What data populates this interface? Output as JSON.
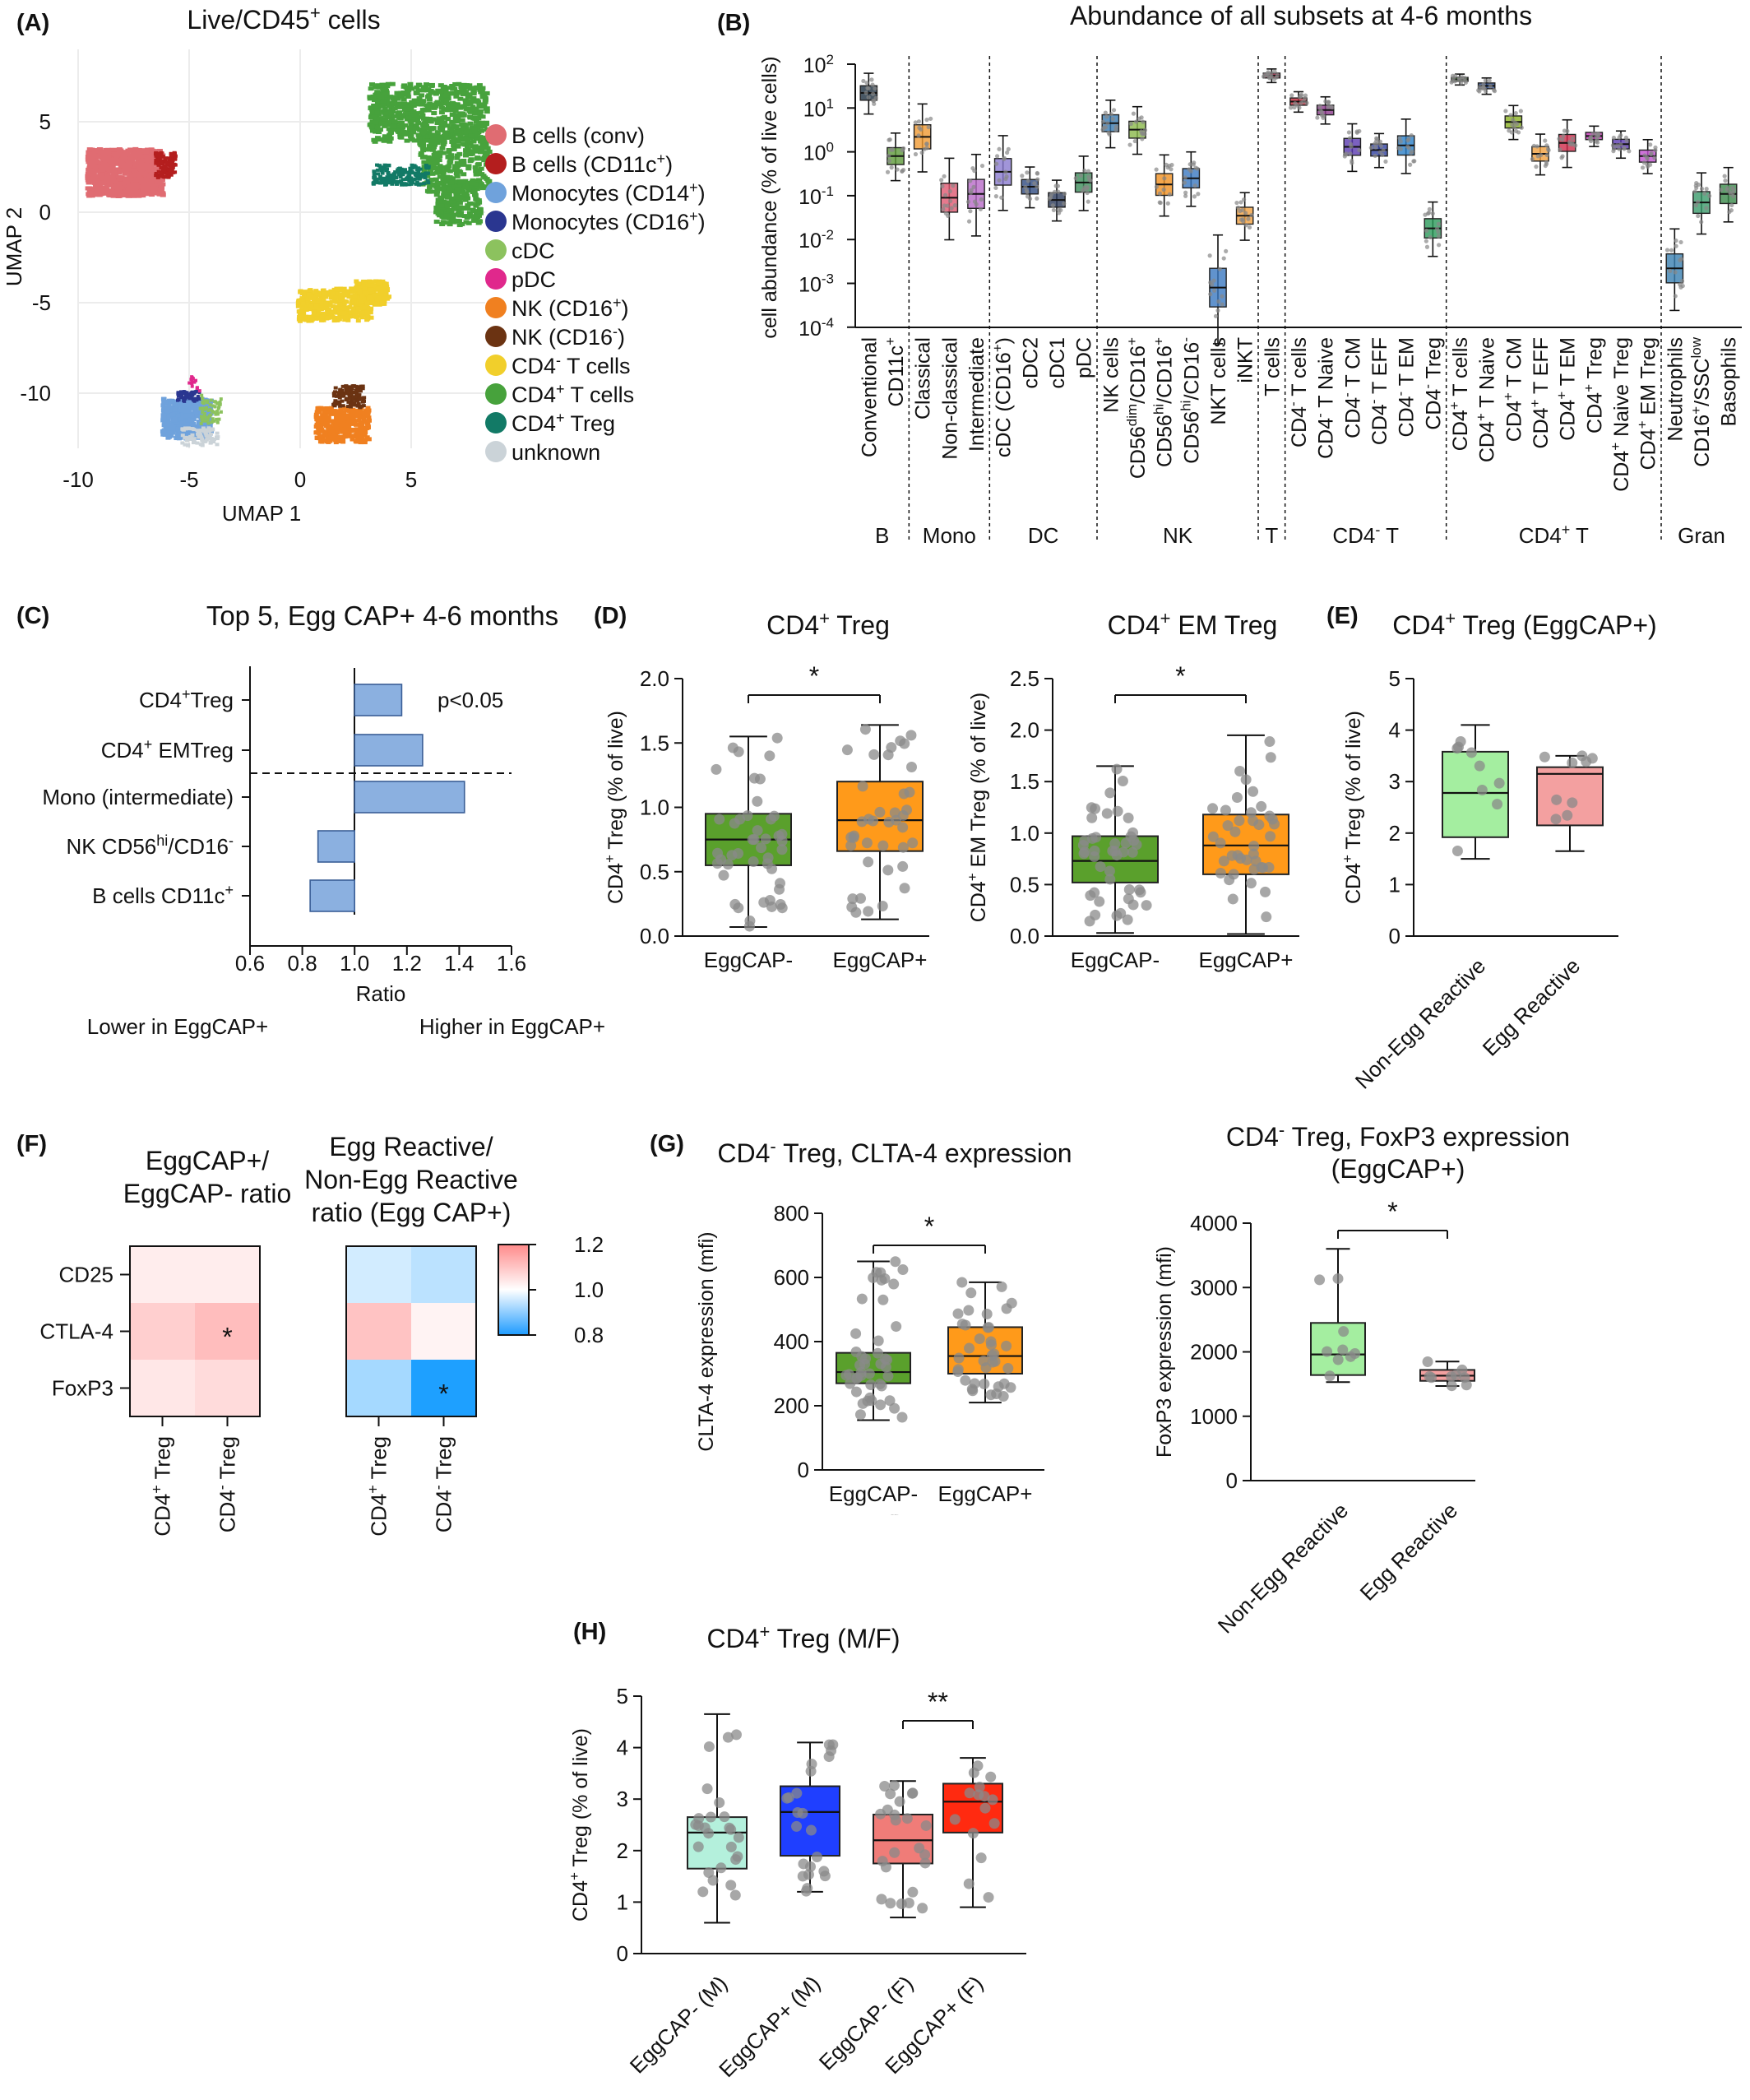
{
  "colors": {
    "b_conv": "#e06c72",
    "b_cd11c": "#b41e1e",
    "mono14": "#6fa2dc",
    "mono16": "#2a3690",
    "cdc": "#8cc25e",
    "pdc": "#e0288c",
    "nk16pos": "#f08020",
    "nk16neg": "#6b3312",
    "cd4neg": "#f1cf2b",
    "cd4pos": "#47a23c",
    "cd4treg": "#127a66",
    "unknown": "#cbd3d8",
    "barfill": "#8bb0e0",
    "green_box": "#5aa02c",
    "orange_box": "#ff9a1a",
    "lightgreen_box": "#a4eea0",
    "pink_box": "#f3a0a0",
    "mint_box": "#b4f0dc",
    "blue_box": "#1f3fff",
    "salmon_box": "#f07c78",
    "red_box": "#ff2a10"
  },
  "panel_labels": [
    "(A)",
    "(B)",
    "(C)",
    "(D)",
    "(E)",
    "(F)",
    "(G)",
    "(H)"
  ],
  "chart_data": [
    {
      "panel": "A",
      "type": "scatter",
      "title": "Live/CD45+ cells",
      "xlabel": "UMAP 1",
      "ylabel": "UMAP 2",
      "xticks": [
        "-10",
        "-5",
        "0",
        "5"
      ],
      "yticks": [
        "5",
        "0",
        "-5",
        "-10"
      ],
      "xlim": [
        -10,
        5
      ],
      "ylim": [
        -13,
        6
      ],
      "legend": [
        "B cells (conv)",
        "B cells (CD11c+)",
        "Monocytes (CD14+)",
        "Monocytes (CD16+)",
        "cDC",
        "pDC",
        "NK (CD16+)",
        "NK (CD16-)",
        "CD4- T cells",
        "CD4+ T cells",
        "CD4+ Treg",
        "unknown"
      ],
      "clusters": [
        {
          "name": "B cells (conv)",
          "color_key": "b_conv",
          "cx": -7.5,
          "cy": 2.3
        },
        {
          "name": "B cells (CD11c+)",
          "color_key": "b_cd11c",
          "cx": -6.2,
          "cy": 2.5
        },
        {
          "name": "Monocytes (CD14+)",
          "color_key": "mono14",
          "cx": -5.3,
          "cy": -11.5
        },
        {
          "name": "Monocytes (CD16+)",
          "color_key": "mono16",
          "cx": -5.1,
          "cy": -10.7
        },
        {
          "name": "cDC",
          "color_key": "cdc",
          "cx": -4.6,
          "cy": -10.8
        },
        {
          "name": "pDC",
          "color_key": "pdc",
          "cx": -4.8,
          "cy": -9.3
        },
        {
          "name": "NK (CD16+)",
          "color_key": "nk16pos",
          "cx": 1.7,
          "cy": -11.8
        },
        {
          "name": "NK (CD16-)",
          "color_key": "nk16neg",
          "cx": 2.0,
          "cy": -10.0
        },
        {
          "name": "CD4- T cells",
          "color_key": "cd4neg",
          "cx": 1.7,
          "cy": -5.0
        },
        {
          "name": "CD4+ T cells",
          "color_key": "cd4pos",
          "cx": 5.0,
          "cy": 5.0
        },
        {
          "name": "CD4+ Treg",
          "color_key": "cd4treg",
          "cx": 4.2,
          "cy": 2.4
        },
        {
          "name": "unknown",
          "color_key": "unknown",
          "cx": -5.6,
          "cy": -12.3
        }
      ]
    },
    {
      "panel": "B",
      "type": "box",
      "title": "Abundance of all subsets at 4-6 months",
      "ylabel": "cell abundance (% of live cells)",
      "yscale": "log",
      "ylim": [
        0.0001,
        100
      ],
      "yticks": [
        "10^2",
        "10^1",
        "10^0",
        "10^-1",
        "10^-2",
        "10^-3",
        "10^-4"
      ],
      "groups": [
        "B",
        "Mono",
        "DC",
        "NK",
        "T",
        "CD4- T",
        "CD4+ T",
        "Gran"
      ],
      "categories": [
        "Conventional",
        "CD11c+",
        "Classical",
        "Non-classical",
        "Intermediate",
        "cDC (CD16+)",
        "cDC2",
        "cDC1",
        "pDC",
        "NK cells",
        "CD56dim/CD16+",
        "CD56hi/CD16+",
        "CD56hi/CD16-",
        "NKT cells",
        "iNKT",
        "T cells",
        "CD4- T cells",
        "CD4- T Naive",
        "CD4- T CM",
        "CD4- T EFF",
        "CD4- T EM",
        "CD4- Treg",
        "CD4+ T cells",
        "CD4+ T Naive",
        "CD4+ T CM",
        "CD4+ T EFF",
        "CD4+ T EM",
        "CD4+ Treg",
        "CD4+ Naive Treg",
        "CD4+ EM Treg",
        "Neutrophils",
        "CD16+/SSClow",
        "Basophils"
      ],
      "medians": [
        22,
        0.8,
        2.2,
        0.09,
        0.11,
        0.35,
        0.16,
        0.08,
        0.2,
        4.5,
        3.2,
        0.18,
        0.25,
        0.0008,
        0.035,
        55,
        14,
        9,
        1.3,
        1.1,
        1.4,
        0.018,
        45,
        32,
        4.8,
        0.9,
        1.6,
        2.3,
        1.5,
        0.8,
        0.0022,
        0.07,
        0.11
      ]
    },
    {
      "panel": "C",
      "type": "bar",
      "title": "Top 5, Egg CAP+ 4-6 months",
      "xlabel": "Ratio",
      "xlim": [
        0.6,
        1.6
      ],
      "xticks": [
        "0.6",
        "0.8",
        "1.0",
        "1.2",
        "1.4",
        "1.6"
      ],
      "categories": [
        "CD4+Treg",
        "CD4+ EMTreg",
        "Mono (intermediate)",
        "NK CD56hi/CD16-",
        "B cells CD11c+"
      ],
      "values": [
        1.18,
        1.26,
        1.42,
        0.86,
        0.83
      ],
      "annotation": "p<0.05",
      "note_left": "Lower in EggCAP+",
      "note_right": "Higher in EggCAP+"
    },
    {
      "panel": "D1",
      "type": "box",
      "title": "CD4+ Treg",
      "ylabel": "CD4+ Treg (% of live)",
      "ylim": [
        0,
        2.0
      ],
      "yticks": [
        "0.0",
        "0.5",
        "1.0",
        "1.5",
        "2.0"
      ],
      "categories": [
        "EggCAP-",
        "EggCAP+"
      ],
      "boxes": [
        {
          "min": 0.07,
          "q1": 0.55,
          "median": 0.75,
          "q3": 0.95,
          "max": 1.55
        },
        {
          "min": 0.13,
          "q1": 0.66,
          "median": 0.9,
          "q3": 1.2,
          "max": 1.64
        }
      ],
      "significance": "*"
    },
    {
      "panel": "D2",
      "type": "box",
      "title": "CD4+ EM Treg",
      "ylabel": "CD4+ EM Treg (% of live)",
      "ylim": [
        0,
        2.5
      ],
      "yticks": [
        "0.0",
        "0.5",
        "1.0",
        "1.5",
        "2.0",
        "2.5"
      ],
      "categories": [
        "EggCAP-",
        "EggCAP+"
      ],
      "boxes": [
        {
          "min": 0.03,
          "q1": 0.52,
          "median": 0.73,
          "q3": 0.97,
          "max": 1.65
        },
        {
          "min": 0.02,
          "q1": 0.6,
          "median": 0.88,
          "q3": 1.18,
          "max": 1.95
        }
      ],
      "significance": "*"
    },
    {
      "panel": "E",
      "type": "box",
      "title": "CD4+ Treg (EggCAP+)",
      "ylabel": "CD4+ Treg (% of live)",
      "ylim": [
        0,
        5
      ],
      "yticks": [
        "0",
        "1",
        "2",
        "3",
        "4",
        "5"
      ],
      "categories": [
        "Non-Egg Reactive",
        "Egg Reactive"
      ],
      "boxes": [
        {
          "min": 1.5,
          "q1": 1.92,
          "median": 2.78,
          "q3": 3.58,
          "max": 4.1
        },
        {
          "min": 1.65,
          "q1": 2.15,
          "median": 3.15,
          "q3": 3.28,
          "max": 3.5
        }
      ]
    },
    {
      "panel": "F1",
      "type": "heatmap",
      "title": "EggCAP+/ EggCAP- ratio",
      "rows": [
        "CD25",
        "CTLA-4",
        "FoxP3"
      ],
      "cols": [
        "CD4+ Treg",
        "CD4- Treg"
      ],
      "values": [
        [
          1.03,
          1.03
        ],
        [
          1.08,
          1.11
        ],
        [
          1.04,
          1.06
        ]
      ],
      "significant": [
        [
          false,
          false
        ],
        [
          false,
          true
        ],
        [
          false,
          false
        ]
      ],
      "scale": [
        0.8,
        1.2
      ]
    },
    {
      "panel": "F2",
      "type": "heatmap",
      "title": "Egg Reactive/ Non-Egg Reactive ratio (Egg CAP+)",
      "rows": [
        "CD25",
        "CTLA-4",
        "FoxP3"
      ],
      "cols": [
        "CD4+ Treg",
        "CD4- Treg"
      ],
      "values": [
        [
          0.96,
          0.94
        ],
        [
          1.1,
          1.02
        ],
        [
          0.92,
          0.78
        ]
      ],
      "significant": [
        [
          false,
          false
        ],
        [
          false,
          false
        ],
        [
          false,
          true
        ]
      ],
      "scale": [
        0.8,
        1.2
      ],
      "colorbar_ticks": [
        "1.2",
        "1.0",
        "0.8"
      ]
    },
    {
      "panel": "G1",
      "type": "box",
      "title": "CD4- Treg, CLTA-4 expression",
      "ylabel": "CLTA-4 expression (mfi)",
      "ylim": [
        0,
        800
      ],
      "yticks": [
        "0",
        "200",
        "400",
        "600",
        "800"
      ],
      "categories": [
        "EggCAP-",
        "EggCAP+"
      ],
      "boxes": [
        {
          "min": 155,
          "q1": 270,
          "median": 305,
          "q3": 365,
          "max": 650
        },
        {
          "min": 210,
          "q1": 300,
          "median": 355,
          "q3": 445,
          "max": 585
        }
      ],
      "significance": "*"
    },
    {
      "panel": "G2",
      "type": "box",
      "title": "CD4- Treg, FoxP3 expression (EggCAP+)",
      "ylabel": "FoxP3 expression (mfi)",
      "ylim": [
        0,
        4000
      ],
      "yticks": [
        "0",
        "1000",
        "2000",
        "3000",
        "4000"
      ],
      "categories": [
        "Non-Egg Reactive",
        "Egg Reactive"
      ],
      "boxes": [
        {
          "min": 1530,
          "q1": 1640,
          "median": 1960,
          "q3": 2450,
          "max": 3600
        },
        {
          "min": 1470,
          "q1": 1550,
          "median": 1630,
          "q3": 1720,
          "max": 1850
        }
      ],
      "significance": "*"
    },
    {
      "panel": "H",
      "type": "box",
      "title": "CD4+ Treg (M/F)",
      "ylabel": "CD4+ Treg (% of live)",
      "ylim": [
        0,
        5
      ],
      "yticks": [
        "0",
        "1",
        "2",
        "3",
        "4",
        "5"
      ],
      "categories": [
        "EggCAP- (M)",
        "EggCAP+ (M)",
        "EggCAP- (F)",
        "EggCAP+ (F)"
      ],
      "boxes": [
        {
          "min": 0.6,
          "q1": 1.65,
          "median": 2.35,
          "q3": 2.65,
          "max": 4.65
        },
        {
          "min": 1.2,
          "q1": 1.9,
          "median": 2.75,
          "q3": 3.25,
          "max": 4.1
        },
        {
          "min": 0.7,
          "q1": 1.75,
          "median": 2.2,
          "q3": 2.7,
          "max": 3.35
        },
        {
          "min": 0.9,
          "q1": 2.35,
          "median": 2.95,
          "q3": 3.3,
          "max": 3.8
        }
      ],
      "significance": "**"
    }
  ]
}
